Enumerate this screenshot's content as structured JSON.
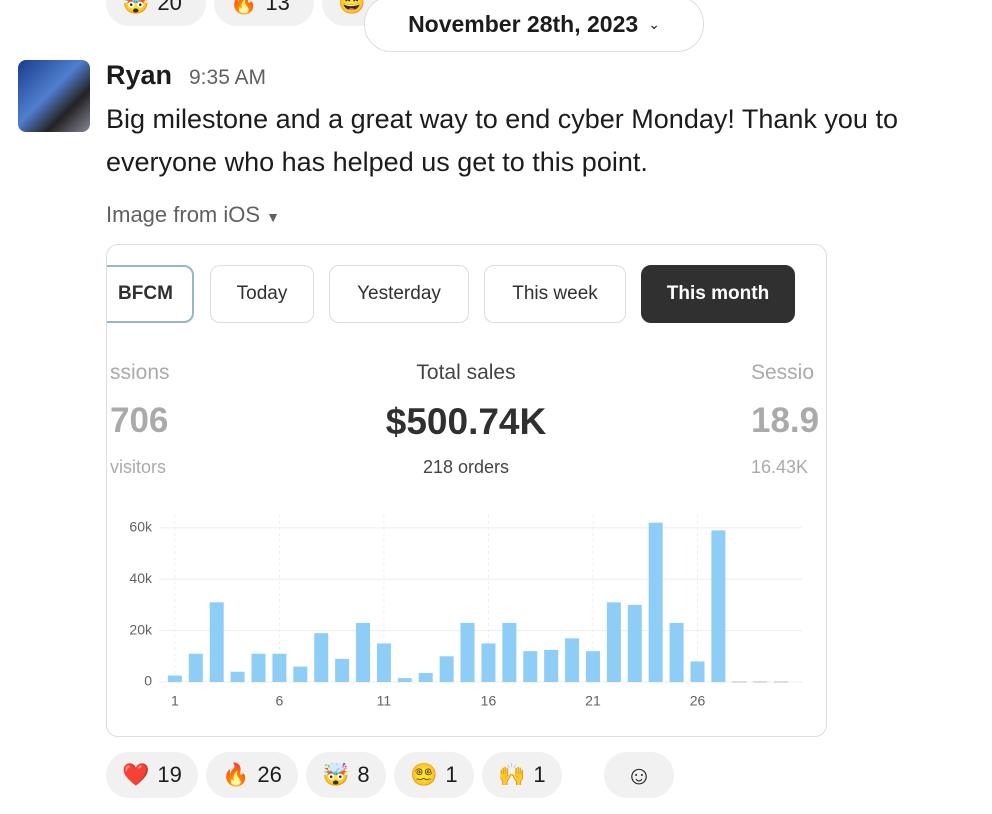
{
  "top_reactions": [
    {
      "emoji": "🤯",
      "count": "20"
    },
    {
      "emoji": "🔥",
      "count": "13"
    },
    {
      "emoji": "😄"
    }
  ],
  "date_divider": "November 28th, 2023",
  "message": {
    "author": "Ryan",
    "time": "9:35 AM",
    "text_lines": [
      "Big milestone and a great way to end cyber Monday! Thank you to",
      "everyone who has helped us get to this point."
    ],
    "attachment_label": "Image from iOS"
  },
  "image": {
    "tabs": [
      "BFCM",
      "Today",
      "Yesterday",
      "This week",
      "This month"
    ],
    "metrics": [
      {
        "title": "ssions",
        "value": "706",
        "sub": "visitors"
      },
      {
        "title": "Total sales",
        "value": "$500.74K",
        "sub": "218 orders"
      },
      {
        "title": "Sessio",
        "value": "18.9",
        "sub": "16.43K"
      }
    ],
    "chart_data": {
      "type": "bar",
      "color": "#8ecdf5",
      "x": [
        1,
        2,
        3,
        4,
        5,
        6,
        7,
        8,
        9,
        10,
        11,
        12,
        13,
        14,
        15,
        16,
        17,
        18,
        19,
        20,
        21,
        22,
        23,
        24,
        25,
        26,
        27,
        28,
        29,
        30
      ],
      "values": [
        2500,
        11000,
        31000,
        4000,
        11000,
        11000,
        6000,
        19000,
        9000,
        23000,
        15000,
        1500,
        3500,
        10000,
        23000,
        15000,
        23000,
        12000,
        12500,
        17000,
        12000,
        31000,
        30000,
        62000,
        23000,
        8000,
        59000,
        0,
        0,
        0
      ],
      "xlim": [
        0,
        31
      ],
      "xticks": [
        1,
        6,
        11,
        16,
        21,
        26
      ],
      "ylim": [
        0,
        65000
      ],
      "yticks": [
        0,
        {
          "value": 20000,
          "label": "20k"
        },
        {
          "value": 40000,
          "label": "40k"
        },
        {
          "value": 60000,
          "label": "60k"
        }
      ],
      "grid": true
    }
  },
  "reactions": [
    {
      "emoji": "❤️",
      "count": "19"
    },
    {
      "emoji": "🔥",
      "count": "26"
    },
    {
      "emoji": "🤯",
      "count": "8"
    },
    {
      "emoji": "😵‍💫",
      "count": "1"
    },
    {
      "emoji": "🙌",
      "count": "1"
    }
  ]
}
